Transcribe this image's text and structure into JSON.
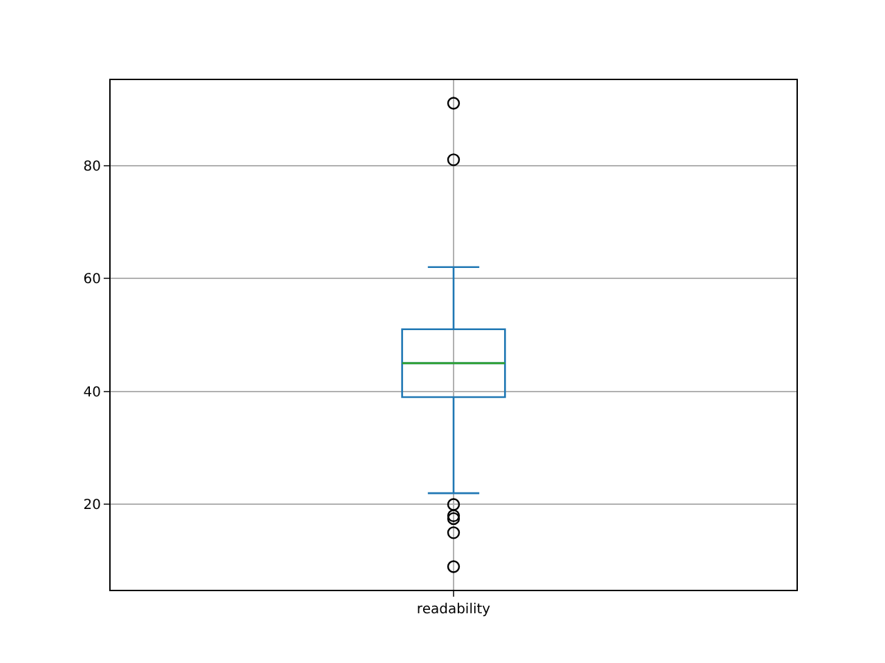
{
  "chart_data": {
    "type": "box",
    "categories": [
      "readability"
    ],
    "boxes": [
      {
        "low": 22,
        "q1": 39,
        "median": 45,
        "q3": 51,
        "high": 62,
        "outliers": [
          91,
          81,
          20,
          18,
          17.5,
          15,
          9
        ]
      }
    ],
    "color": "#1f77b4",
    "ylim": [
      4.9,
      95.1
    ],
    "yticks": [
      20,
      40,
      60,
      80
    ],
    "grid": true
  }
}
